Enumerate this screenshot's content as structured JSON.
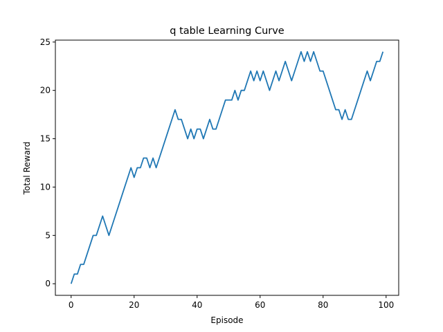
{
  "chart_data": {
    "type": "line",
    "title": "q table Learning Curve",
    "xlabel": "Episode",
    "ylabel": "Total Reward",
    "xlim": [
      -5,
      104
    ],
    "ylim": [
      -1.2,
      25.2
    ],
    "xticks": [
      0,
      20,
      40,
      60,
      80,
      100
    ],
    "yticks": [
      0,
      5,
      10,
      15,
      20,
      25
    ],
    "grid": false,
    "line_color": "#1f77b4",
    "series": [
      {
        "x": [
          0,
          1,
          2,
          3,
          4,
          5,
          6,
          7,
          8,
          9,
          10,
          11,
          12,
          13,
          14,
          15,
          16,
          17,
          18,
          19,
          20,
          21,
          22,
          23,
          24,
          25,
          26,
          27,
          28,
          29,
          30,
          31,
          32,
          33,
          34,
          35,
          36,
          37,
          38,
          39,
          40,
          41,
          42,
          43,
          44,
          45,
          46,
          47,
          48,
          49,
          50,
          51,
          52,
          53,
          54,
          55,
          56,
          57,
          58,
          59,
          60,
          61,
          62,
          63,
          64,
          65,
          66,
          67,
          68,
          69,
          70,
          71,
          72,
          73,
          74,
          75,
          76,
          77,
          78,
          79,
          80,
          81,
          82,
          83,
          84,
          85,
          86,
          87,
          88,
          89,
          90,
          91,
          92,
          93,
          94,
          95,
          96,
          97,
          98,
          99
        ],
        "y": [
          0,
          1,
          1,
          2,
          2,
          3,
          4,
          5,
          5,
          6,
          7,
          6,
          5,
          6,
          7,
          8,
          9,
          10,
          11,
          12,
          11,
          12,
          12,
          13,
          13,
          12,
          13,
          12,
          13,
          14,
          15,
          16,
          17,
          18,
          17,
          17,
          16,
          15,
          16,
          15,
          16,
          16,
          15,
          16,
          17,
          16,
          16,
          17,
          18,
          19,
          19,
          19,
          20,
          19,
          20,
          20,
          21,
          22,
          21,
          22,
          21,
          22,
          21,
          20,
          21,
          22,
          21,
          22,
          23,
          22,
          21,
          22,
          23,
          24,
          23,
          24,
          23,
          24,
          23,
          22,
          22,
          21,
          20,
          19,
          18,
          18,
          17,
          18,
          17,
          17,
          18,
          19,
          20,
          21,
          22,
          21,
          22,
          23,
          23,
          24
        ]
      }
    ]
  }
}
